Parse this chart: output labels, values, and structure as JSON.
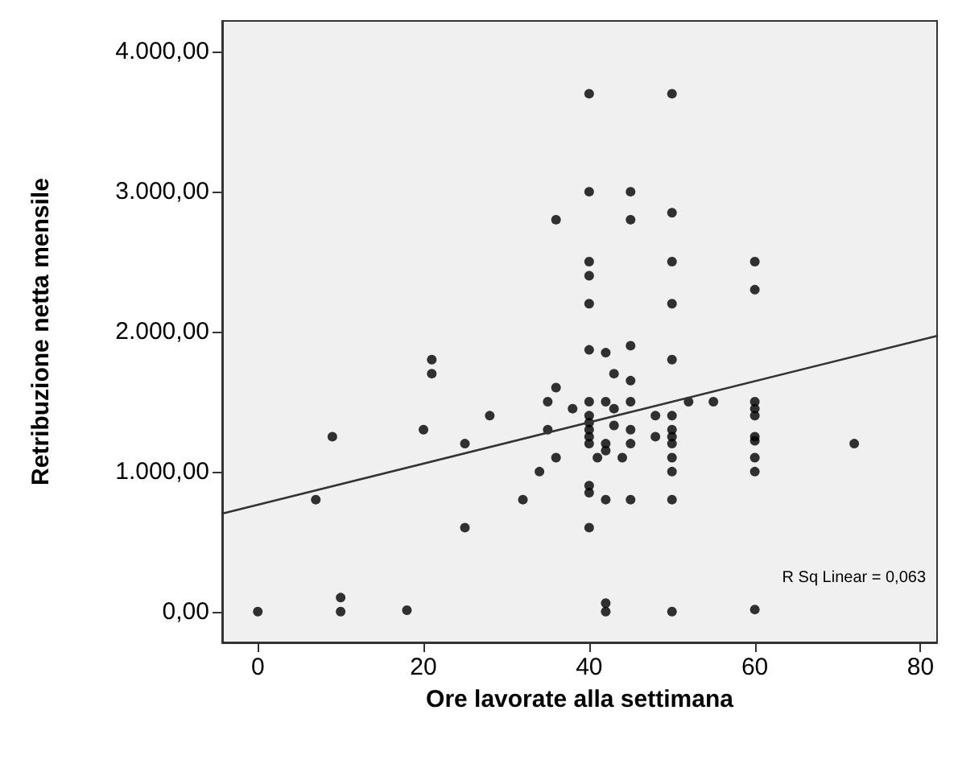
{
  "chart_data": {
    "type": "scatter",
    "xlabel": "Ore lavorate alla settimana",
    "ylabel": "Retribuzione netta mensile",
    "annotations": [
      "R Sq Linear = 0,063"
    ],
    "xlim": [
      -4.3,
      82
    ],
    "xticks": [
      0,
      20,
      40,
      60,
      80
    ],
    "ylim": [
      -220,
      4220
    ],
    "yticks": [
      {
        "value": 0,
        "label": "0,00"
      },
      {
        "value": 1000,
        "label": "1.000,00"
      },
      {
        "value": 2000,
        "label": "2.000,00"
      },
      {
        "value": 3000,
        "label": "3.000,00"
      },
      {
        "value": 4000,
        "label": "4.000,00"
      }
    ],
    "grid": false,
    "marker": "circle",
    "series": [
      {
        "color": "#000000",
        "x": [
          0,
          7,
          9,
          10,
          10,
          18,
          20,
          21,
          21,
          25,
          25,
          28,
          32,
          34,
          35,
          35,
          36,
          36,
          36,
          38,
          40,
          40,
          40,
          40,
          40,
          40,
          40,
          40,
          40,
          40,
          40,
          40,
          40,
          40,
          40,
          41,
          42,
          42,
          42,
          42,
          42,
          42,
          42,
          43,
          43,
          43,
          44,
          45,
          45,
          45,
          45,
          45,
          45,
          45,
          45,
          48,
          48,
          50,
          50,
          50,
          50,
          50,
          50,
          50,
          50,
          50,
          50,
          50,
          50,
          50,
          52,
          55,
          60,
          60,
          60,
          60,
          60,
          60,
          60,
          60,
          60,
          60,
          72
        ],
        "values": [
          0,
          800,
          1250,
          100,
          0,
          10,
          1300,
          1800,
          1700,
          1200,
          600,
          1400,
          800,
          1000,
          1500,
          1300,
          1600,
          1100,
          2800,
          1450,
          3700,
          3000,
          2500,
          2400,
          2200,
          1870,
          1500,
          1400,
          1350,
          1300,
          1250,
          1200,
          900,
          850,
          600,
          1100,
          1850,
          1500,
          1200,
          1150,
          800,
          60,
          0,
          1700,
          1450,
          1330,
          1100,
          3000,
          2800,
          1900,
          1650,
          1500,
          1300,
          1200,
          800,
          1400,
          1250,
          3700,
          2850,
          2500,
          2200,
          1800,
          1400,
          1300,
          1250,
          1200,
          1100,
          1000,
          800,
          0,
          1500,
          1500,
          2500,
          2300,
          1500,
          1450,
          1400,
          1250,
          1220,
          1100,
          1000,
          15,
          1200
        ]
      },
      {
        "type": "line",
        "color": "#333333",
        "marker": "none",
        "x": [
          -4.3,
          82
        ],
        "values": [
          700,
          1970
        ]
      }
    ]
  }
}
